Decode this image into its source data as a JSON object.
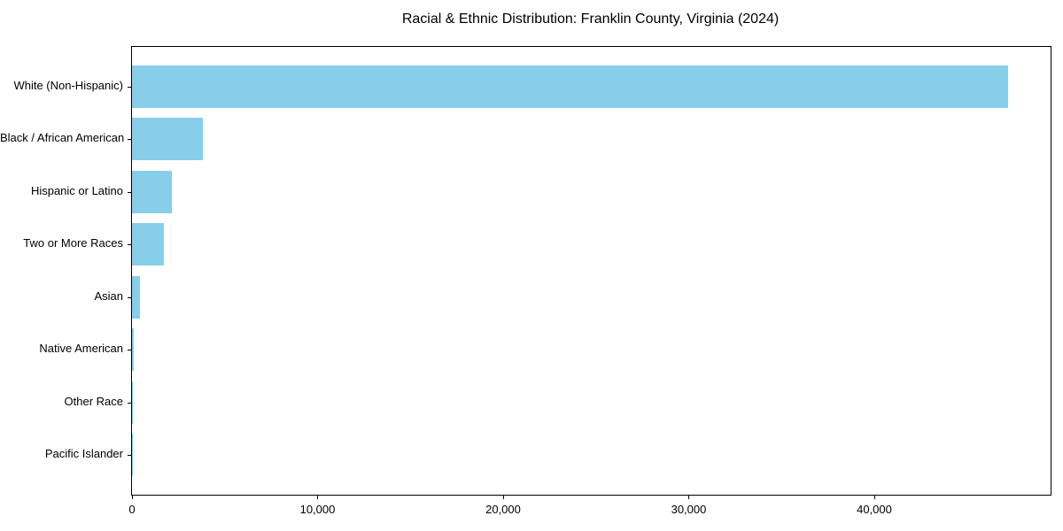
{
  "chart_data": {
    "type": "bar",
    "orientation": "horizontal",
    "title": "Racial & Ethnic Distribution: Franklin County, Virginia (2024)",
    "categories": [
      "White (Non-Hispanic)",
      "Black / African American",
      "Hispanic or Latino",
      "Two or More Races",
      "Asian",
      "Native American",
      "Other Race",
      "Pacific Islander"
    ],
    "values": [
      47200,
      3800,
      2150,
      1700,
      430,
      80,
      40,
      15
    ],
    "xlabel": "",
    "ylabel": "",
    "xlim": [
      0,
      49500
    ],
    "x_ticks": [
      0,
      10000,
      20000,
      30000,
      40000
    ],
    "x_tick_labels": [
      "0",
      "10,000",
      "20,000",
      "30,000",
      "40,000"
    ],
    "bar_color": "#87CEEB",
    "axis_color": "#000000",
    "text_color": "#000000",
    "background": "#FFFFFF",
    "grid": false,
    "legend_position": "none"
  }
}
